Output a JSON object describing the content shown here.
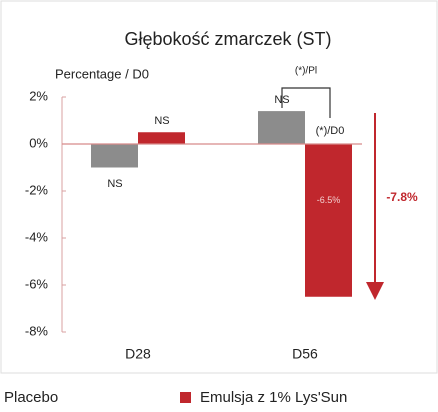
{
  "chart_data": {
    "type": "bar",
    "title": "Głębokość zmarczek (ST)",
    "y_label": "Percentage / D0",
    "categories": [
      "D28",
      "D56"
    ],
    "series": [
      {
        "name": "Placebo",
        "color": "#8c8c8c",
        "values": [
          -1.0,
          1.4
        ]
      },
      {
        "name": "Emulsja z 1% Lys'Sun",
        "color": "#c0272d",
        "values": [
          0.5,
          -6.5
        ],
        "value_labels": [
          null,
          "-6.5%"
        ]
      }
    ],
    "ylim": [
      -8,
      2
    ],
    "yticks": [
      {
        "value": 2,
        "label": "2%"
      },
      {
        "value": 0,
        "label": "0%"
      },
      {
        "value": -2,
        "label": "-2%"
      },
      {
        "value": -4,
        "label": "-4%"
      },
      {
        "value": -6,
        "label": "-6%"
      },
      {
        "value": -8,
        "label": "-8%"
      }
    ],
    "annotations": [
      "NS",
      "NS",
      "NS",
      "(*)/Pl",
      "(*)/D0",
      "-7.8%"
    ]
  }
}
